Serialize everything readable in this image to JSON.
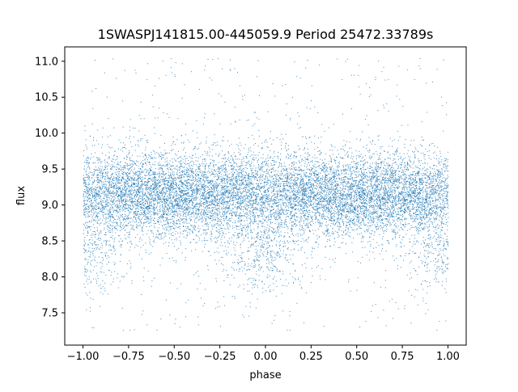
{
  "chart_data": {
    "type": "scatter",
    "title": "1SWASPJ141815.00-445059.9 Period 25472.33789s",
    "xlabel": "phase",
    "ylabel": "flux",
    "xlim": [
      -1.1,
      1.1
    ],
    "ylim": [
      7.05,
      11.2
    ],
    "x_ticks": [
      -1.0,
      -0.75,
      -0.5,
      -0.25,
      0.0,
      0.25,
      0.5,
      0.75,
      1.0
    ],
    "x_tick_labels": [
      "−1.00",
      "−0.75",
      "−0.50",
      "−0.25",
      "0.00",
      "0.25",
      "0.50",
      "0.75",
      "1.00"
    ],
    "y_ticks": [
      7.5,
      8.0,
      8.5,
      9.0,
      9.5,
      10.0,
      10.5,
      11.0
    ],
    "y_tick_labels": [
      "7.5",
      "8.0",
      "8.5",
      "9.0",
      "9.5",
      "10.0",
      "10.5",
      "11.0"
    ],
    "grid": false,
    "legend": "none",
    "series": [
      {
        "color": "#1f77b4",
        "x_range": [
          -1.0,
          1.0
        ],
        "baseline_flux": 9.15,
        "flux_spread": 0.3,
        "eclipse_phases": [
          -1.0,
          0.0,
          1.0
        ],
        "eclipse_min_flux": 8.3,
        "point_count_estimate": 40000
      }
    ]
  }
}
